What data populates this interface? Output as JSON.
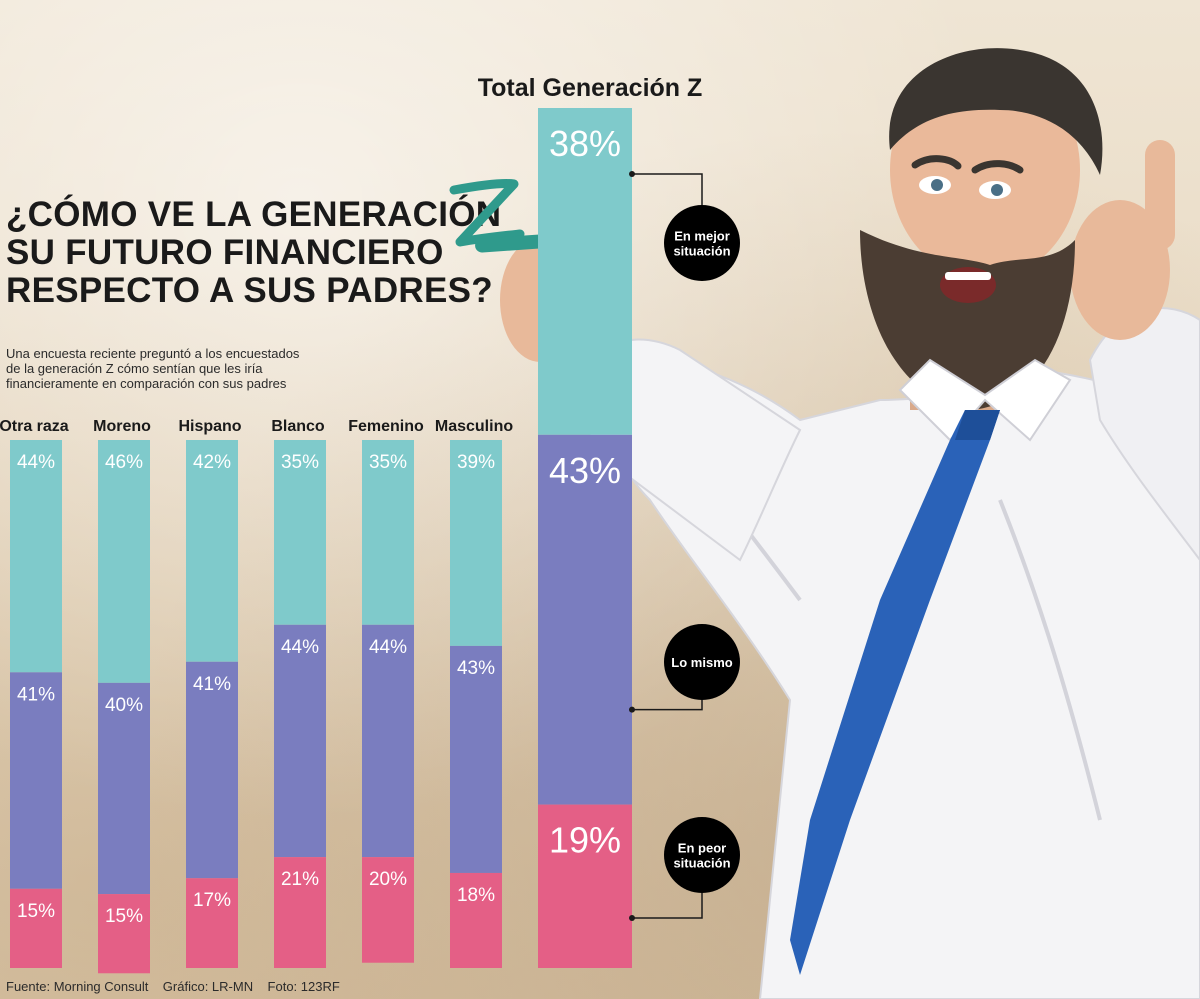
{
  "title_lines": [
    "¿CÓMO VE LA GENERACIÓN",
    "SU FUTURO FINANCIERO",
    "RESPECTO A SUS PADRES?"
  ],
  "title_mark": "Z",
  "subtitle_lines": [
    "Una encuesta reciente preguntó a los encuestados",
    "de la generación Z cómo sentían que les iría",
    "financieramente en comparación con sus padres"
  ],
  "source": "Fuente: Morning Consult    Gráfico: LR-MN    Foto: 123RF",
  "colors": {
    "mejor": "#7fcacb",
    "mismo": "#7a7dbf",
    "peor": "#e45f86",
    "label": "#ffffff",
    "pill": "#000000"
  },
  "chart_data": [
    {
      "type": "bar",
      "stacked": true,
      "categories": [
        "Otra raza",
        "Moreno",
        "Hispano",
        "Blanco",
        "Femenino",
        "Masculino"
      ],
      "series": [
        {
          "key": "mejor",
          "values": [
            44,
            46,
            42,
            35,
            35,
            39
          ],
          "labels": [
            "44%",
            "46%",
            "42%",
            "35%",
            "35%",
            "39%"
          ]
        },
        {
          "key": "mismo",
          "values": [
            41,
            40,
            41,
            44,
            44,
            43
          ],
          "labels": [
            "41%",
            "40%",
            "41%",
            "44%",
            "44%",
            "43%"
          ]
        },
        {
          "key": "peor",
          "values": [
            15,
            15,
            17,
            21,
            20,
            18
          ],
          "labels": [
            "15%",
            "15%",
            "17%",
            "21%",
            "20%",
            "18%"
          ]
        }
      ],
      "ylim": [
        0,
        100
      ]
    },
    {
      "type": "bar",
      "stacked": true,
      "title": "Total Generación Z",
      "categories": [
        "Total Generación Z"
      ],
      "series": [
        {
          "key": "mejor",
          "name": "En mejor situación",
          "values": [
            38
          ],
          "labels": [
            "38%"
          ]
        },
        {
          "key": "mismo",
          "name": "Lo mismo",
          "values": [
            43
          ],
          "labels": [
            "43%"
          ]
        },
        {
          "key": "peor",
          "name": "En peor situación",
          "values": [
            19
          ],
          "labels": [
            "19%"
          ]
        }
      ],
      "ylim": [
        0,
        100
      ]
    }
  ]
}
